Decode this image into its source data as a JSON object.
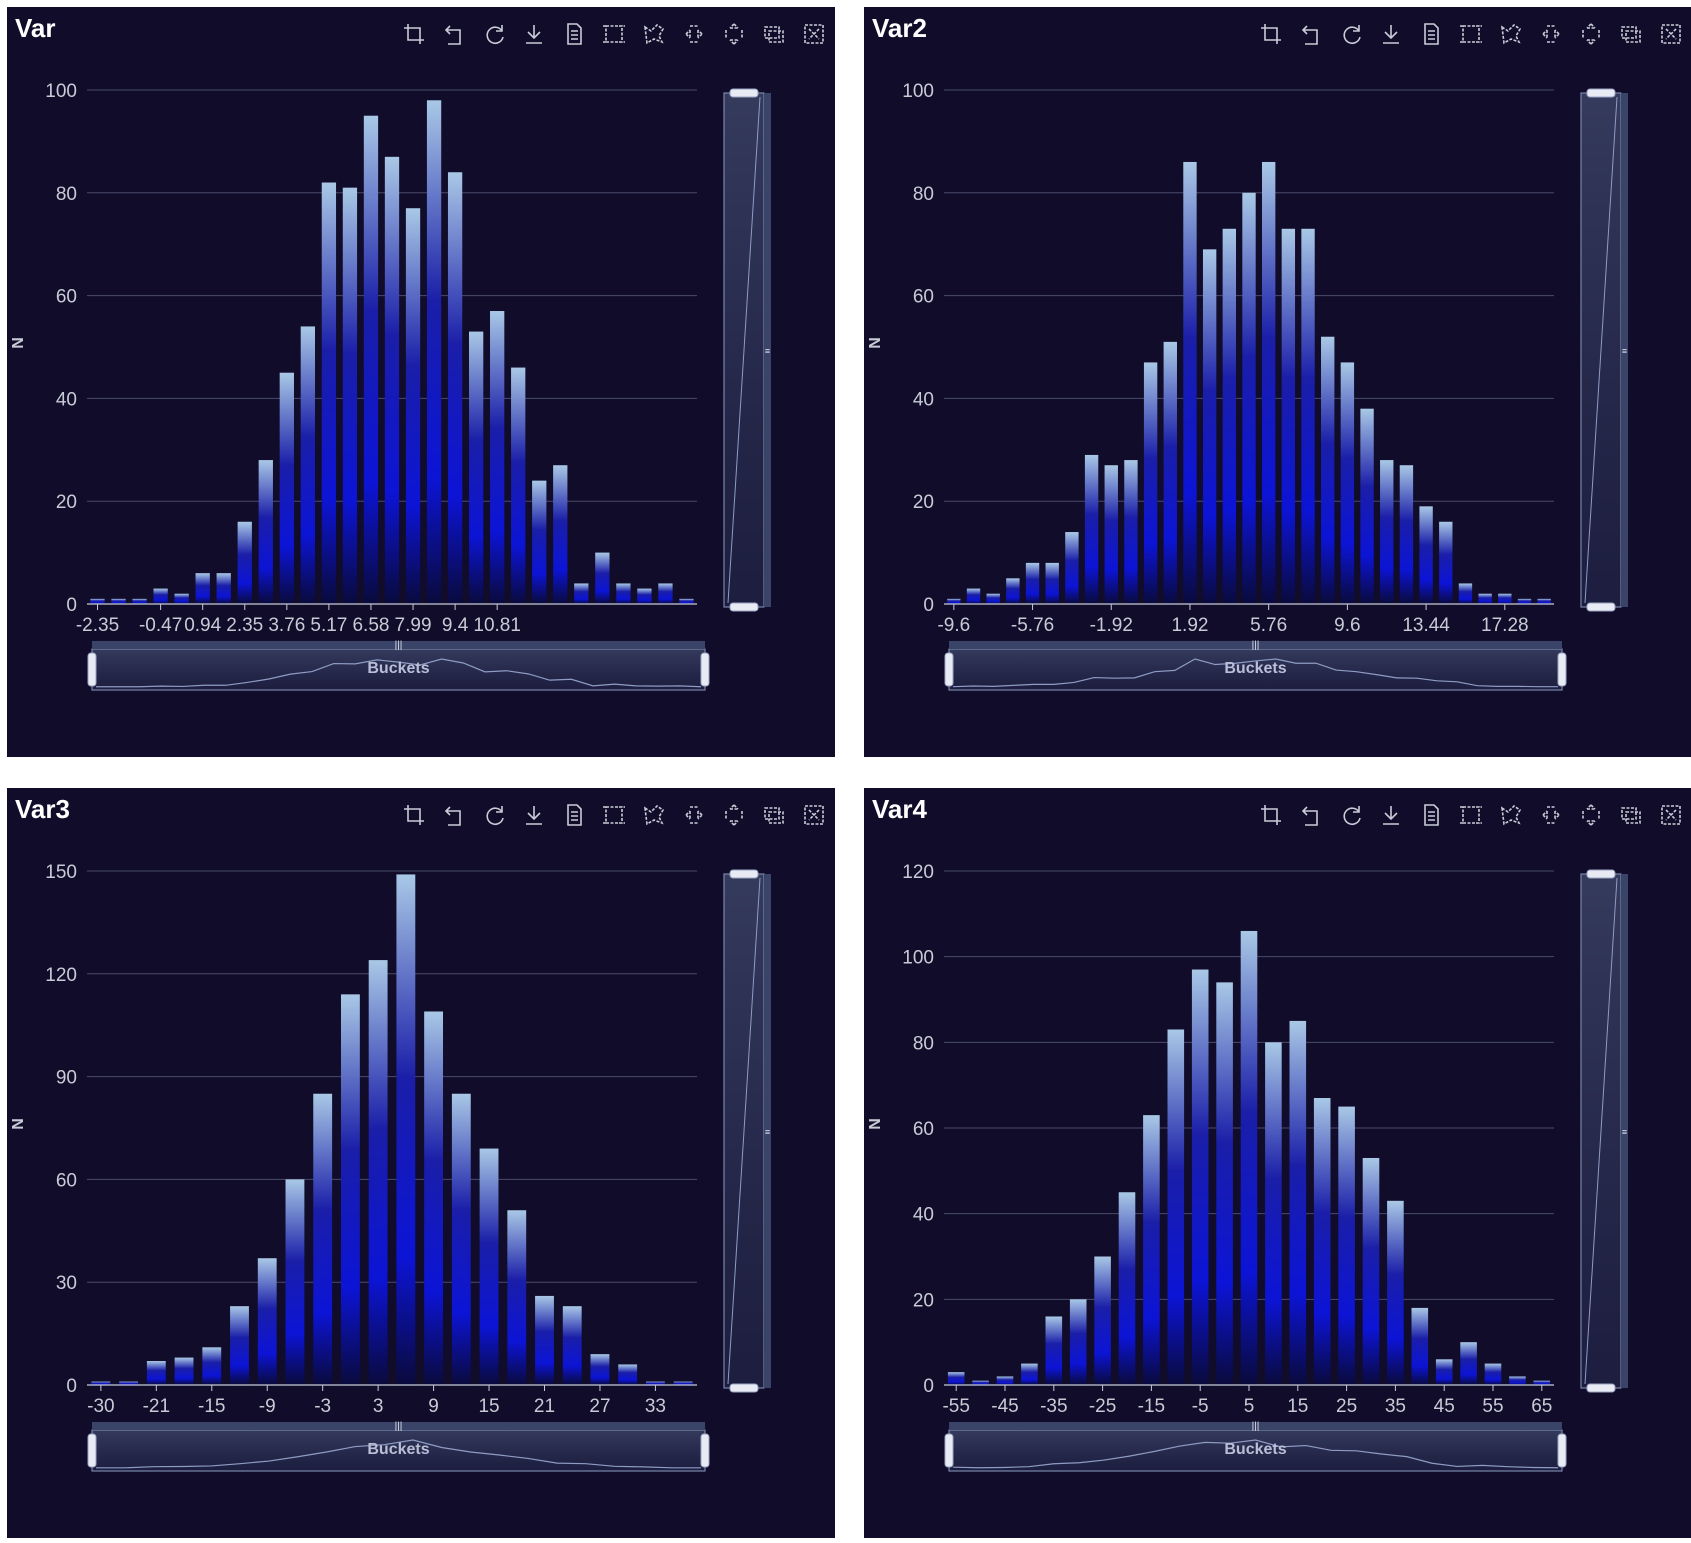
{
  "axis_name_y": "N",
  "slider_label": "Buckets",
  "toolbar": [
    "zoom-icon",
    "zoom-back-icon",
    "restore-icon",
    "download-icon",
    "data-view-icon",
    "rect-select-icon",
    "lasso-select-icon",
    "horizontal-select-icon",
    "vertical-select-icon",
    "keep-selection-icon",
    "clear-selection-icon"
  ],
  "colors": {
    "panel_bg": "#100c2a",
    "bar_top": "#a9c8e6",
    "bar_mid": "#0c14d6",
    "bar_bottom": "#0a0a3c",
    "grid": "#4a4a6a"
  },
  "chart_data": [
    {
      "type": "bar",
      "title": "Var",
      "ylabel": "N",
      "xlabel": "Buckets",
      "ylim": [
        0,
        100
      ],
      "yticks": [
        0,
        20,
        40,
        60,
        80,
        100
      ],
      "xtick_labels": [
        "-2.35",
        "-0.47",
        "0.94",
        "2.35",
        "3.76",
        "5.17",
        "6.58",
        "7.99",
        "9.4",
        "10.81"
      ],
      "xtick_at": [
        0,
        3,
        5,
        7,
        9,
        11,
        13,
        15,
        17,
        19
      ],
      "values": [
        1,
        1,
        1,
        3,
        2,
        6,
        6,
        16,
        28,
        45,
        54,
        82,
        81,
        95,
        87,
        77,
        98,
        84,
        53,
        57,
        46,
        24,
        27,
        4,
        10,
        4,
        3,
        4,
        1
      ]
    },
    {
      "type": "bar",
      "title": "Var2",
      "ylabel": "N",
      "xlabel": "Buckets",
      "ylim": [
        0,
        100
      ],
      "yticks": [
        0,
        20,
        40,
        60,
        80,
        100
      ],
      "xtick_labels": [
        "-9.6",
        "-5.76",
        "-1.92",
        "1.92",
        "5.76",
        "9.6",
        "13.44",
        "17.28"
      ],
      "xtick_at": [
        0,
        4,
        8,
        12,
        16,
        20,
        24,
        28
      ],
      "values": [
        1,
        3,
        2,
        5,
        8,
        8,
        14,
        29,
        27,
        28,
        47,
        51,
        86,
        69,
        73,
        80,
        86,
        73,
        73,
        52,
        47,
        38,
        28,
        27,
        19,
        16,
        4,
        2,
        2,
        1,
        1
      ]
    },
    {
      "type": "bar",
      "title": "Var3",
      "ylabel": "N",
      "xlabel": "Buckets",
      "ylim": [
        0,
        150
      ],
      "yticks": [
        0,
        30,
        60,
        90,
        120,
        150
      ],
      "xtick_labels": [
        "-30",
        "-21",
        "-15",
        "-9",
        "-3",
        "3",
        "9",
        "15",
        "21",
        "27",
        "33"
      ],
      "xtick_at": [
        0,
        2,
        4,
        6,
        8,
        10,
        12,
        14,
        16,
        18,
        20
      ],
      "values": [
        1,
        1,
        7,
        8,
        11,
        23,
        37,
        60,
        85,
        114,
        124,
        149,
        109,
        85,
        69,
        51,
        26,
        23,
        9,
        6,
        1,
        1
      ]
    },
    {
      "type": "bar",
      "title": "Var4",
      "ylabel": "N",
      "xlabel": "Buckets",
      "ylim": [
        0,
        120
      ],
      "yticks": [
        0,
        20,
        40,
        60,
        80,
        100,
        120
      ],
      "xtick_labels": [
        "-55",
        "-45",
        "-35",
        "-25",
        "-15",
        "-5",
        "5",
        "15",
        "25",
        "35",
        "45",
        "55",
        "65"
      ],
      "xtick_at": [
        0,
        2,
        4,
        6,
        8,
        10,
        12,
        14,
        16,
        18,
        20,
        22,
        24
      ],
      "values": [
        3,
        1,
        2,
        5,
        16,
        20,
        30,
        45,
        63,
        83,
        97,
        94,
        106,
        80,
        85,
        67,
        65,
        53,
        43,
        18,
        6,
        10,
        5,
        2,
        1
      ]
    }
  ]
}
